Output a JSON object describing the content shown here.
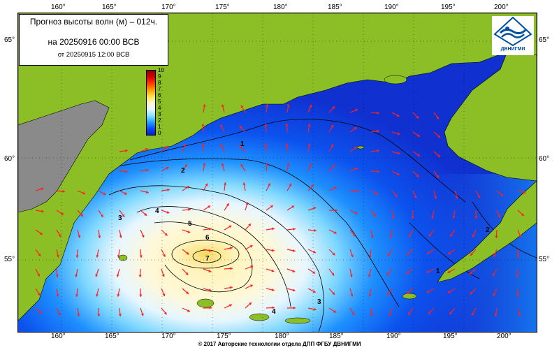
{
  "title": {
    "line1": "Прогноз высоты волн (м) – 012ч.",
    "line2": "на 20250916 00:00 ВСВ",
    "line3": "от 20250915 12:00 ВСВ"
  },
  "longitude_labels": [
    "160°",
    "165°",
    "170°",
    "175°",
    "180°",
    "185°",
    "190°",
    "195°",
    "200°"
  ],
  "latitude_labels": [
    "65°",
    "60°",
    "55°"
  ],
  "legend_values": [
    "10",
    "9",
    "8",
    "7",
    "6",
    "5",
    "4",
    "3",
    "2",
    "1",
    "0"
  ],
  "contour_labels": [
    "1",
    "2",
    "3",
    "4",
    "5",
    "6",
    "7",
    "1",
    "2",
    "3",
    "4"
  ],
  "logo_text": "ДВНИГМИ",
  "copyright": "© 2017 Авторские технологии отдела ДПП ФГБУ ДВНИГМИ",
  "colors": {
    "land": "#8cbf26",
    "land_grey": "#8a8a8a",
    "deep_sea": "#1234c8",
    "arrow": "#ff2020"
  }
}
